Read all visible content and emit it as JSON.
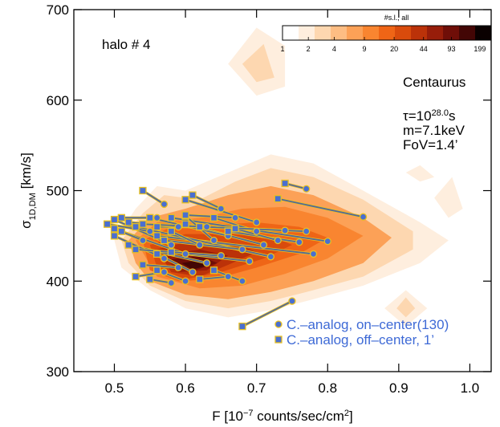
{
  "chart_data": {
    "type": "scatter",
    "annotations": {
      "halo": "halo # 4",
      "object": "Centaurus",
      "tau": {
        "base": "τ=10",
        "sup": "28.0",
        "unit": "s"
      },
      "mass": "m=7.1keV",
      "fov": "FoV=1.4’"
    },
    "xlabel": [
      {
        "text": "F [10"
      },
      {
        "text": "−7",
        "sup": true
      },
      {
        "text": " counts/sec/cm"
      },
      {
        "text": "2",
        "sup": true
      },
      {
        "text": "]"
      }
    ],
    "ylabel": [
      {
        "text": "σ"
      },
      {
        "text": "1D,DM",
        "sub": true
      },
      {
        "text": " [km/s]"
      }
    ],
    "xlim": [
      0.443,
      1.03
    ],
    "ylim": [
      300,
      700
    ],
    "xticks": [
      {
        "value": 0.5,
        "label": "0.5"
      },
      {
        "value": 0.6,
        "label": "0.6"
      },
      {
        "value": 0.7,
        "label": "0.7"
      },
      {
        "value": 0.8,
        "label": "0.8"
      },
      {
        "value": 0.9,
        "label": "0.9"
      },
      {
        "value": 1.0,
        "label": "1.0"
      }
    ],
    "yticks": [
      300,
      400,
      500,
      600,
      700
    ],
    "colorbar": {
      "title": "#s.l., all",
      "lim": [
        1,
        270
      ],
      "log": true,
      "ticks": [
        1,
        2,
        4,
        9,
        20,
        44,
        93,
        199
      ],
      "colors": [
        "#ffffff",
        "#feeede",
        "#fdd7b0",
        "#fdbd83",
        "#fca157",
        "#f98530",
        "#ef6516",
        "#d94b0c",
        "#bb3209",
        "#971d0a",
        "#6f0e08",
        "#430605",
        "#0a0000"
      ]
    },
    "contours": [
      {
        "color": "#feeede",
        "points": [
          [
            0.5,
            445
          ],
          [
            0.53,
            480
          ],
          [
            0.56,
            505
          ],
          [
            0.6,
            500
          ],
          [
            0.66,
            520
          ],
          [
            0.72,
            540
          ],
          [
            0.78,
            530
          ],
          [
            0.85,
            500
          ],
          [
            0.93,
            465
          ],
          [
            0.97,
            445
          ],
          [
            0.93,
            420
          ],
          [
            0.85,
            395
          ],
          [
            0.78,
            380
          ],
          [
            0.72,
            368
          ],
          [
            0.66,
            360
          ],
          [
            0.6,
            370
          ],
          [
            0.55,
            390
          ],
          [
            0.51,
            415
          ]
        ]
      },
      {
        "color": "#fdd7b0",
        "points": [
          [
            0.51,
            445
          ],
          [
            0.54,
            475
          ],
          [
            0.57,
            495
          ],
          [
            0.62,
            490
          ],
          [
            0.67,
            510
          ],
          [
            0.72,
            525
          ],
          [
            0.78,
            515
          ],
          [
            0.85,
            490
          ],
          [
            0.92,
            455
          ],
          [
            0.92,
            435
          ],
          [
            0.85,
            405
          ],
          [
            0.78,
            390
          ],
          [
            0.72,
            378
          ],
          [
            0.66,
            370
          ],
          [
            0.6,
            378
          ],
          [
            0.55,
            395
          ],
          [
            0.52,
            420
          ]
        ]
      },
      {
        "color": "#fca157",
        "points": [
          [
            0.52,
            445
          ],
          [
            0.55,
            470
          ],
          [
            0.6,
            480
          ],
          [
            0.66,
            495
          ],
          [
            0.72,
            505
          ],
          [
            0.78,
            495
          ],
          [
            0.85,
            470
          ],
          [
            0.89,
            448
          ],
          [
            0.85,
            420
          ],
          [
            0.78,
            400
          ],
          [
            0.72,
            388
          ],
          [
            0.66,
            380
          ],
          [
            0.6,
            385
          ],
          [
            0.55,
            400
          ],
          [
            0.53,
            420
          ]
        ]
      },
      {
        "color": "#f98530",
        "points": [
          [
            0.53,
            445
          ],
          [
            0.56,
            465
          ],
          [
            0.62,
            470
          ],
          [
            0.68,
            480
          ],
          [
            0.74,
            482
          ],
          [
            0.8,
            470
          ],
          [
            0.85,
            450
          ],
          [
            0.8,
            425
          ],
          [
            0.74,
            408
          ],
          [
            0.68,
            395
          ],
          [
            0.62,
            392
          ],
          [
            0.56,
            405
          ]
        ]
      },
      {
        "color": "#ef6516",
        "points": [
          [
            0.54,
            445
          ],
          [
            0.58,
            460
          ],
          [
            0.64,
            462
          ],
          [
            0.7,
            465
          ],
          [
            0.76,
            460
          ],
          [
            0.8,
            448
          ],
          [
            0.76,
            430
          ],
          [
            0.7,
            415
          ],
          [
            0.64,
            402
          ],
          [
            0.59,
            400
          ],
          [
            0.55,
            412
          ]
        ]
      },
      {
        "color": "#d94b0c",
        "points": [
          [
            0.55,
            440
          ],
          [
            0.6,
            452
          ],
          [
            0.66,
            452
          ],
          [
            0.72,
            450
          ],
          [
            0.75,
            440
          ],
          [
            0.71,
            425
          ],
          [
            0.65,
            410
          ],
          [
            0.6,
            402
          ],
          [
            0.56,
            415
          ]
        ]
      },
      {
        "color": "#bb3209",
        "points": [
          [
            0.56,
            435
          ],
          [
            0.61,
            445
          ],
          [
            0.67,
            442
          ],
          [
            0.7,
            432
          ],
          [
            0.66,
            418
          ],
          [
            0.62,
            405
          ],
          [
            0.58,
            410
          ]
        ]
      },
      {
        "color": "#971d0a",
        "points": [
          [
            0.57,
            428
          ],
          [
            0.62,
            435
          ],
          [
            0.66,
            428
          ],
          [
            0.63,
            412
          ],
          [
            0.59,
            410
          ]
        ]
      },
      {
        "color": "#6f0e08",
        "points": [
          [
            0.58,
            424
          ],
          [
            0.62,
            428
          ],
          [
            0.645,
            420
          ],
          [
            0.61,
            411
          ]
        ]
      },
      {
        "color": "#430605",
        "points": [
          [
            0.595,
            420
          ],
          [
            0.62,
            423
          ],
          [
            0.63,
            417
          ],
          [
            0.61,
            413
          ]
        ]
      },
      {
        "color": "#feeede",
        "points": [
          [
            0.66,
            640
          ],
          [
            0.7,
            680
          ],
          [
            0.74,
            660
          ],
          [
            0.74,
            615
          ],
          [
            0.7,
            605
          ]
        ]
      },
      {
        "color": "#fdd7b0",
        "points": [
          [
            0.68,
            640
          ],
          [
            0.71,
            662
          ],
          [
            0.725,
            625
          ],
          [
            0.7,
            620
          ]
        ]
      },
      {
        "color": "#feeede",
        "points": [
          [
            0.91,
            520
          ],
          [
            0.93,
            528
          ],
          [
            0.95,
            515
          ],
          [
            0.93,
            510
          ]
        ]
      },
      {
        "color": "#feeede",
        "points": [
          [
            0.95,
            492
          ],
          [
            0.975,
            515
          ],
          [
            0.99,
            480
          ],
          [
            0.97,
            470
          ]
        ]
      },
      {
        "color": "#feeede",
        "points": [
          [
            0.88,
            370
          ],
          [
            0.91,
            390
          ],
          [
            0.94,
            370
          ],
          [
            0.91,
            350
          ]
        ]
      },
      {
        "color": "#fdd7b0",
        "points": [
          [
            0.897,
            370
          ],
          [
            0.91,
            382
          ],
          [
            0.923,
            370
          ],
          [
            0.91,
            360
          ]
        ]
      }
    ],
    "series": [
      {
        "name": "C.–analog, on–center(130)",
        "marker": "circle",
        "color": "#4a6fd0",
        "edge": "#e8c020",
        "x": [
          0.77,
          0.85,
          0.57,
          0.65,
          0.7,
          0.8,
          0.77,
          0.78,
          0.76,
          0.72,
          0.71,
          0.68,
          0.66,
          0.75,
          0.68,
          0.66,
          0.63,
          0.6,
          0.58,
          0.57,
          0.55,
          0.56,
          0.57,
          0.58,
          0.59,
          0.61,
          0.62,
          0.64,
          0.7,
          0.73,
          0.69,
          0.65,
          0.6,
          0.63,
          0.54,
          0.59,
          0.67,
          0.74
        ],
        "y": [
          502,
          471,
          485,
          480,
          465,
          444,
          455,
          430,
          443,
          427,
          440,
          435,
          450,
          378,
          400,
          405,
          420,
          430,
          440,
          425,
          455,
          470,
          410,
          398,
          415,
          410,
          440,
          445,
          455,
          445,
          422,
          428,
          400,
          460,
          445,
          460,
          470,
          456
        ]
      },
      {
        "name": "C.–analog, off–center, 1’",
        "marker": "square",
        "color": "#4a6fd0",
        "edge": "#e8c020",
        "x": [
          0.74,
          0.73,
          0.54,
          0.61,
          0.6,
          0.58,
          0.62,
          0.56,
          0.66,
          0.53,
          0.6,
          0.57,
          0.55,
          0.68,
          0.64,
          0.62,
          0.52,
          0.51,
          0.5,
          0.5,
          0.49,
          0.51,
          0.53,
          0.55,
          0.54,
          0.56,
          0.58,
          0.6,
          0.64,
          0.67,
          0.58,
          0.53,
          0.56,
          0.56,
          0.5,
          0.52,
          0.6,
          0.54
        ],
        "y": [
          508,
          491,
          500,
          495,
          490,
          470,
          460,
          450,
          455,
          460,
          463,
          445,
          470,
          350,
          412,
          402,
          440,
          455,
          468,
          450,
          463,
          470,
          405,
          402,
          418,
          430,
          455,
          472,
          470,
          458,
          432,
          435,
          412,
          460,
          458,
          465,
          473,
          463
        ]
      }
    ],
    "line_color": "#52689a"
  }
}
